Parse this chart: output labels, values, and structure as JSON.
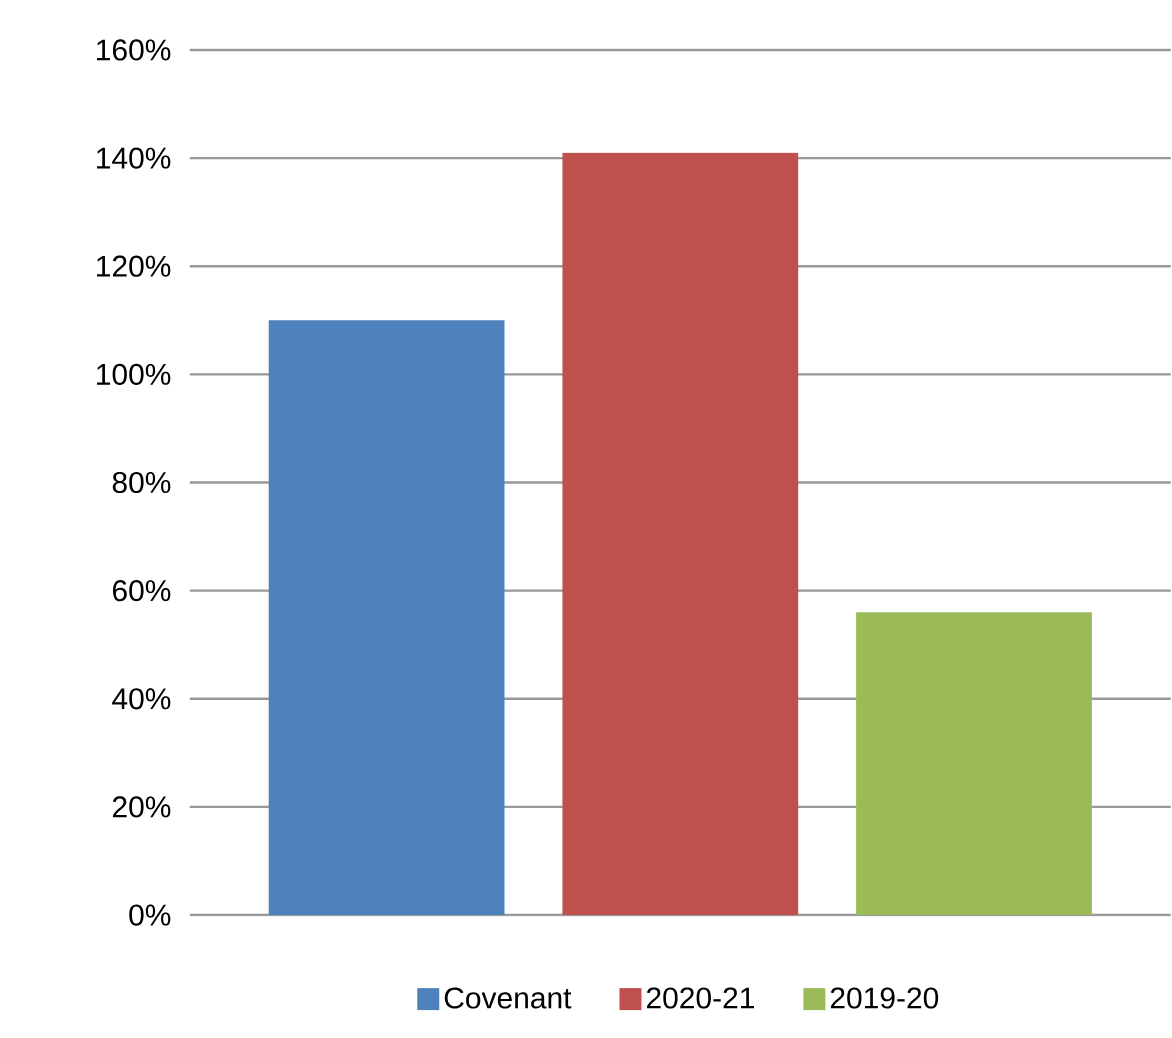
{
  "chart_data": {
    "type": "bar",
    "categories": [
      null
    ],
    "series": [
      {
        "name": "Covenant",
        "color": "#4f81bd",
        "values": [
          110
        ]
      },
      {
        "name": "2020-21",
        "color": "#c0504d",
        "values": [
          141
        ]
      },
      {
        "name": "2019-20",
        "color": "#9bbb59",
        "values": [
          56
        ]
      }
    ],
    "ylim": [
      0,
      160
    ],
    "yticks": [
      {
        "value": 0,
        "label": "0%"
      },
      {
        "value": 20,
        "label": "20%"
      },
      {
        "value": 40,
        "label": "40%"
      },
      {
        "value": 60,
        "label": "60%"
      },
      {
        "value": 80,
        "label": "80%"
      },
      {
        "value": 100,
        "label": "100%"
      },
      {
        "value": 120,
        "label": "120%"
      },
      {
        "value": 140,
        "label": "140%"
      },
      {
        "value": 160,
        "label": "160%"
      }
    ],
    "grid": "y",
    "legend": "bottom"
  }
}
